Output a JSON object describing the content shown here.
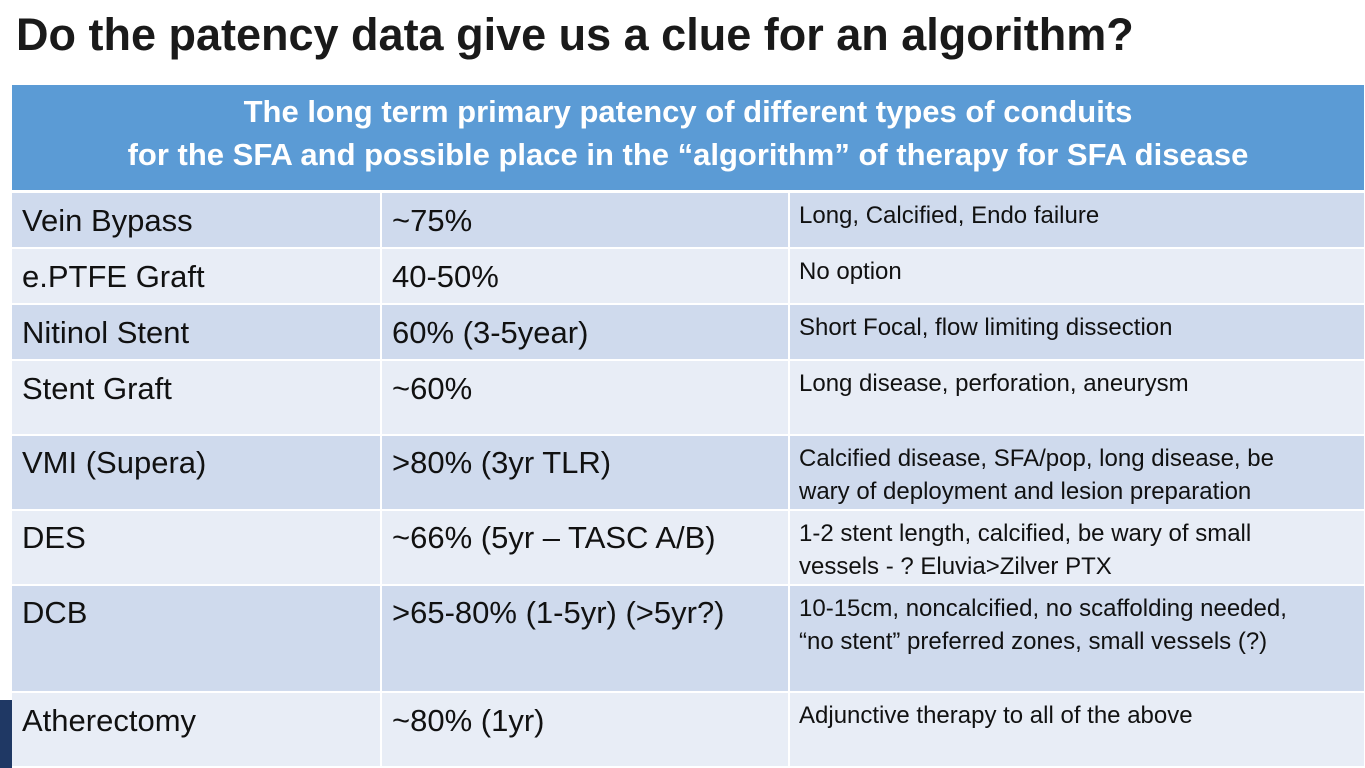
{
  "title": "Do the patency data give us a clue for an algorithm?",
  "table": {
    "header_line_1": "The long term primary patency of different types of conduits",
    "header_line_2": "for the SFA and possible place in the “algorithm” of therapy for SFA disease",
    "rows": [
      {
        "conduit": "Vein Bypass",
        "patency": "~75%",
        "algorithm_line_1": "Long, Calcified, Endo failure",
        "algorithm_line_2": ""
      },
      {
        "conduit": "e.PTFE Graft",
        "patency": "40-50%",
        "algorithm_line_1": "No option",
        "algorithm_line_2": ""
      },
      {
        "conduit": "Nitinol Stent",
        "patency": "60% (3-5year)",
        "algorithm_line_1": "Short Focal, flow limiting dissection",
        "algorithm_line_2": ""
      },
      {
        "conduit": "Stent Graft",
        "patency": "~60%",
        "algorithm_line_1": "Long disease, perforation, aneurysm",
        "algorithm_line_2": ""
      },
      {
        "conduit": "VMI (Supera)",
        "patency": ">80% (3yr TLR)",
        "algorithm_line_1": "Calcified disease, SFA/pop, long disease, be",
        "algorithm_line_2": "wary of deployment and lesion preparation"
      },
      {
        "conduit": "DES",
        "patency": "~66% (5yr – TASC A/B)",
        "algorithm_line_1": "1-2 stent length, calcified, be wary of small",
        "algorithm_line_2": "vessels - ? Eluvia>Zilver PTX"
      },
      {
        "conduit": "DCB",
        "patency": ">65-80% (1-5yr) (>5yr?)",
        "algorithm_line_1": "10-15cm, noncalcified, no scaffolding needed,",
        "algorithm_line_2": "“no stent” preferred zones, small vessels (?)"
      },
      {
        "conduit": "Atherectomy",
        "patency": "~80% (1yr)",
        "algorithm_line_1": "Adjunctive therapy to all of the above",
        "algorithm_line_2": ""
      }
    ]
  },
  "colors": {
    "header_bg": "#5b9bd5",
    "row_dark": "#cfdaed",
    "row_light": "#e8edf6",
    "accent_bar": "#1f3864"
  }
}
